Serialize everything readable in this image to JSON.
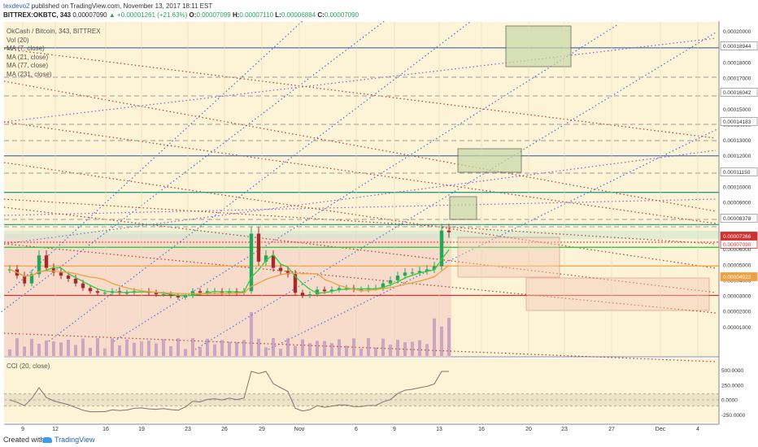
{
  "header": {
    "author": "texdevo2",
    "published_text": "published on TradingView.com, November 13, 2017 18:11 EST",
    "symbol": "BITTREX:OKBTC, 343",
    "last_price": "0.00007090",
    "change": "+0.00001261 (+21.63%)",
    "open_label": "O:",
    "open": "0.00007099",
    "high_label": "H:",
    "high": "0.00007110",
    "low_label": "L:",
    "low": "0.00006884",
    "close_label": "C:",
    "close": "0.00007090"
  },
  "legend": {
    "title": "OkCash / Bitcoin, 343, BITTREX",
    "vol": "Vol (20)",
    "ma7": "MA (7, close)",
    "ma21": "MA (21, close)",
    "ma77": "MA (77, close)",
    "ma231": "MA (231, close)"
  },
  "cci": {
    "label": "CCI (20, close)",
    "ticks": [
      "500.0000",
      "250.0000",
      "0.0000",
      "-250.0000"
    ]
  },
  "footer": {
    "created_with": "Created with",
    "brand": "TradingView"
  },
  "colors": {
    "background": "#fdf3d6",
    "up": "#26a65b",
    "down": "#a52a2a",
    "volume": "#c98ad8",
    "orange": "#f0a040",
    "red_line": "#d32f2f",
    "green_line": "#2ecc40",
    "blue_dotted": "#4a6fdc",
    "purple_dotted": "#9060d0",
    "red_dotted": "#c0392b"
  },
  "chart_data": {
    "type": "candlestick",
    "price_axis": {
      "ticks": [
        "0.00020000",
        "0.00019000",
        "0.00018000",
        "0.00017000",
        "0.00016000",
        "0.00015000",
        "0.00014000",
        "0.00013000",
        "0.00012000",
        "0.00011000",
        "0.00010000",
        "0.00009000",
        "0.00008000",
        "0.00007000",
        "0.00006000",
        "0.00005000",
        "0.00004000",
        "0.00003000",
        "0.00002000",
        "0.00001000"
      ],
      "ylim": [
        0.0,
        0.000205
      ]
    },
    "price_labels": [
      "0.00018944",
      "0.00016042",
      "0.00014183",
      "0.00011150",
      "0.00008378",
      "0.00007266",
      "0.00007090",
      "0.00004922"
    ],
    "x_ticks": [
      "9",
      "12",
      "16",
      "19",
      "23",
      "26",
      "29",
      "Nov",
      "6",
      "9",
      "13",
      "16",
      "20",
      "23",
      "27",
      "Dec",
      "4"
    ],
    "close_series": [
      4.7e-05,
      4.3e-05,
      3.8e-05,
      4.4e-05,
      5.6e-05,
      4.8e-05,
      4.5e-05,
      4.3e-05,
      4.1e-05,
      3.8e-05,
      3.5e-05,
      3.3e-05,
      3.2e-05,
      3.2e-05,
      3.3e-05,
      3.2e-05,
      3.2e-05,
      3.3e-05,
      3.3e-05,
      3.2e-05,
      3.1e-05,
      3.1e-05,
      3e-05,
      2.9e-05,
      3e-05,
      3.3e-05,
      3.2e-05,
      3.3e-05,
      3.3e-05,
      3.2e-05,
      3.3e-05,
      3.2e-05,
      3.3e-05,
      7e-05,
      5.2e-05,
      5.6e-05,
      4.8e-05,
      4.6e-05,
      4.4e-05,
      3.2e-05,
      3e-05,
      3.1e-05,
      3.4e-05,
      3.3e-05,
      3.4e-05,
      3.5e-05,
      3.5e-05,
      3.4e-05,
      3.4e-05,
      3.5e-05,
      3.5e-05,
      3.8e-05,
      4e-05,
      4.3e-05,
      4.5e-05,
      4.5e-05,
      4.6e-05,
      4.7e-05,
      4.9e-05,
      7.2e-05,
      7.09e-05
    ],
    "horizontal_lines": [
      {
        "price": 0.0001894,
        "color": "#5f7fae"
      },
      {
        "price": 0.00012,
        "color": "#5f7fae"
      },
      {
        "price": 9.65e-05,
        "color": "#2a9d8f"
      },
      {
        "price": 7.58e-05,
        "color": "#2a9d8f"
      },
      {
        "price": 6.12e-05,
        "color": "#2ecc40"
      },
      {
        "price": 4.92e-05,
        "color": "#f0a040"
      },
      {
        "price": 3.03e-05,
        "color": "#d32f2f"
      }
    ]
  }
}
